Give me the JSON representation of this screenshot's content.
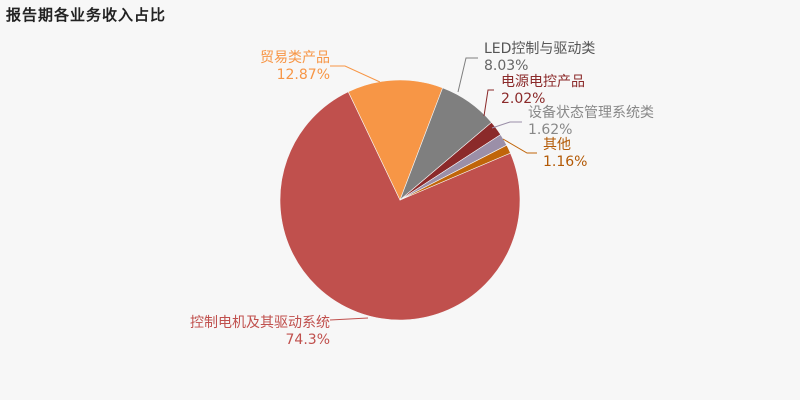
{
  "chart_data": {
    "type": "pie",
    "title": "报告期各业务收入占比",
    "slices": [
      {
        "name": "控制电机及其驱动系统",
        "value": 74.3,
        "value_label": "74.3%",
        "color": "#c0504d"
      },
      {
        "name": "贸易类产品",
        "value": 12.87,
        "value_label": "12.87%",
        "color": "#f79646"
      },
      {
        "name": "LED控制与驱动类",
        "value": 8.03,
        "value_label": "8.03%",
        "color": "#7f7f7f"
      },
      {
        "name": "电源电控产品",
        "value": 2.02,
        "value_label": "2.02%",
        "color": "#8b2a2a"
      },
      {
        "name": "设备状态管理系统类",
        "value": 1.62,
        "value_label": "1.62%",
        "color": "#9b8fa8"
      },
      {
        "name": "其他",
        "value": 1.16,
        "value_label": "1.16%",
        "color": "#c0650a"
      }
    ]
  }
}
